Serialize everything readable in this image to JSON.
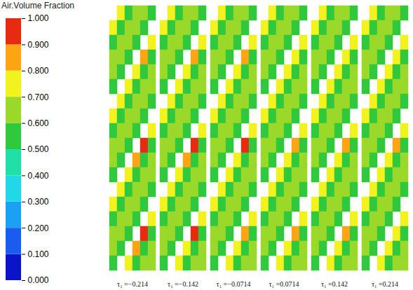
{
  "chart_data": {
    "type": "heatmap",
    "colorbar": {
      "title": "Air.Volume Fraction",
      "range": [
        0,
        1
      ],
      "ticks": [
        {
          "value": 0,
          "label": "0.000"
        },
        {
          "value": 0.1,
          "label": "0.100"
        },
        {
          "value": 0.2,
          "label": "0.200"
        },
        {
          "value": 0.3,
          "label": "0.300"
        },
        {
          "value": 0.4,
          "label": "0.400"
        },
        {
          "value": 0.5,
          "label": "0.500"
        },
        {
          "value": 0.6,
          "label": "0.600"
        },
        {
          "value": 0.7,
          "label": "0.700"
        },
        {
          "value": 0.8,
          "label": "0.800"
        },
        {
          "value": 0.9,
          "label": "0.900"
        },
        {
          "value": 1,
          "label": "1.000"
        }
      ],
      "colors": [
        "#0a14c8",
        "#1a5cf0",
        "#1aa0f5",
        "#20d8e8",
        "#20e0a8",
        "#30c83c",
        "#9ad82a",
        "#f2f21e",
        "#ffa514",
        "#e82a10"
      ]
    },
    "tick_labels": false,
    "panels": [
      {
        "label": "τ₁ =−0.214",
        "cells": [
          [
            null,
            0.75,
            0.55,
            0.62,
            0.66,
            0.52
          ],
          [
            0.75,
            0.55,
            0.62,
            0.66,
            0.52,
            null
          ],
          [
            0.55,
            0.62,
            0.66,
            0.52,
            null,
            0.75
          ],
          [
            0.62,
            0.66,
            0.52,
            null,
            0.85,
            0.55
          ],
          [
            0.66,
            0.52,
            null,
            0.75,
            0.55,
            0.62
          ],
          [
            0.52,
            null,
            0.75,
            0.55,
            0.62,
            0.66
          ],
          [
            null,
            0.75,
            0.55,
            0.62,
            0.66,
            0.52
          ],
          [
            0.75,
            0.55,
            0.62,
            0.66,
            0.52,
            null
          ],
          [
            0.55,
            0.62,
            0.66,
            0.52,
            null,
            0.75
          ],
          [
            0.62,
            0.66,
            0.52,
            null,
            0.95,
            0.55
          ],
          [
            0.66,
            0.52,
            null,
            0.85,
            0.55,
            0.62
          ],
          [
            0.52,
            null,
            0.75,
            0.55,
            0.62,
            0.66
          ],
          [
            null,
            0.75,
            0.55,
            0.62,
            0.66,
            0.52
          ],
          [
            0.75,
            0.55,
            0.62,
            0.66,
            0.52,
            null
          ],
          [
            0.55,
            0.62,
            0.66,
            0.52,
            null,
            0.75
          ],
          [
            0.62,
            0.66,
            0.52,
            null,
            0.95,
            0.55
          ],
          [
            0.66,
            0.52,
            null,
            0.85,
            0.55,
            0.62
          ],
          [
            0.52,
            null,
            0.75,
            0.55,
            0.62,
            0.66
          ]
        ]
      },
      {
        "label": "τ₁ =−0.142",
        "cells": [
          [
            null,
            0.75,
            0.55,
            0.62,
            0.66,
            0.52
          ],
          [
            0.75,
            0.55,
            0.62,
            0.66,
            0.52,
            null
          ],
          [
            0.55,
            0.62,
            0.66,
            0.52,
            null,
            0.75
          ],
          [
            0.62,
            0.66,
            0.52,
            null,
            0.85,
            0.55
          ],
          [
            0.66,
            0.52,
            null,
            0.75,
            0.55,
            0.62
          ],
          [
            0.52,
            null,
            0.75,
            0.55,
            0.62,
            0.66
          ],
          [
            null,
            0.75,
            0.55,
            0.62,
            0.66,
            0.52
          ],
          [
            0.75,
            0.55,
            0.62,
            0.66,
            0.52,
            null
          ],
          [
            0.55,
            0.62,
            0.66,
            0.52,
            null,
            0.75
          ],
          [
            0.62,
            0.66,
            0.52,
            null,
            0.95,
            0.55
          ],
          [
            0.66,
            0.52,
            null,
            0.85,
            0.55,
            0.62
          ],
          [
            0.52,
            null,
            0.75,
            0.55,
            0.62,
            0.66
          ],
          [
            null,
            0.75,
            0.55,
            0.62,
            0.66,
            0.52
          ],
          [
            0.75,
            0.55,
            0.62,
            0.66,
            0.52,
            null
          ],
          [
            0.55,
            0.62,
            0.66,
            0.52,
            null,
            0.75
          ],
          [
            0.62,
            0.66,
            0.52,
            null,
            0.92,
            0.55
          ],
          [
            0.66,
            0.52,
            null,
            0.75,
            0.55,
            0.62
          ],
          [
            0.52,
            null,
            0.75,
            0.55,
            0.62,
            0.66
          ]
        ]
      },
      {
        "label": "τ₁ =−0.0714",
        "cells": [
          [
            null,
            0.75,
            0.55,
            0.62,
            0.66,
            0.52
          ],
          [
            0.75,
            0.55,
            0.62,
            0.66,
            0.52,
            null
          ],
          [
            0.55,
            0.62,
            0.66,
            0.52,
            null,
            0.75
          ],
          [
            0.62,
            0.66,
            0.52,
            null,
            0.82,
            0.55
          ],
          [
            0.66,
            0.52,
            null,
            0.75,
            0.55,
            0.62
          ],
          [
            0.52,
            null,
            0.75,
            0.55,
            0.62,
            0.66
          ],
          [
            null,
            0.75,
            0.55,
            0.62,
            0.66,
            0.52
          ],
          [
            0.75,
            0.55,
            0.62,
            0.66,
            0.52,
            null
          ],
          [
            0.55,
            0.62,
            0.66,
            0.52,
            null,
            0.75
          ],
          [
            0.62,
            0.66,
            0.52,
            null,
            0.92,
            0.55
          ],
          [
            0.66,
            0.52,
            null,
            0.75,
            0.55,
            0.62
          ],
          [
            0.52,
            null,
            0.75,
            0.55,
            0.62,
            0.66
          ],
          [
            null,
            0.75,
            0.55,
            0.62,
            0.66,
            0.52
          ],
          [
            0.75,
            0.55,
            0.62,
            0.66,
            0.52,
            null
          ],
          [
            0.55,
            0.62,
            0.66,
            0.52,
            null,
            0.75
          ],
          [
            0.62,
            0.66,
            0.52,
            null,
            0.85,
            0.55
          ],
          [
            0.66,
            0.52,
            null,
            0.75,
            0.55,
            0.62
          ],
          [
            0.52,
            null,
            0.75,
            0.55,
            0.62,
            0.66
          ]
        ]
      },
      {
        "label": "τ₁ =0.0714",
        "cells": [
          [
            null,
            0.75,
            0.55,
            0.62,
            0.66,
            0.52
          ],
          [
            0.75,
            0.55,
            0.62,
            0.66,
            0.52,
            null
          ],
          [
            0.55,
            0.62,
            0.66,
            0.52,
            null,
            0.75
          ],
          [
            0.62,
            0.66,
            0.52,
            null,
            0.75,
            0.55
          ],
          [
            0.66,
            0.52,
            null,
            0.75,
            0.55,
            0.62
          ],
          [
            0.52,
            null,
            0.75,
            0.55,
            0.62,
            0.66
          ],
          [
            null,
            0.75,
            0.55,
            0.62,
            0.66,
            0.52
          ],
          [
            0.75,
            0.55,
            0.62,
            0.66,
            0.52,
            null
          ],
          [
            0.55,
            0.62,
            0.66,
            0.52,
            null,
            0.75
          ],
          [
            0.62,
            0.66,
            0.52,
            null,
            0.85,
            0.55
          ],
          [
            0.66,
            0.52,
            null,
            0.75,
            0.55,
            0.62
          ],
          [
            0.52,
            null,
            0.75,
            0.55,
            0.62,
            0.66
          ],
          [
            null,
            0.75,
            0.55,
            0.62,
            0.66,
            0.52
          ],
          [
            0.75,
            0.55,
            0.62,
            0.66,
            0.52,
            null
          ],
          [
            0.55,
            0.62,
            0.66,
            0.52,
            null,
            0.75
          ],
          [
            0.62,
            0.66,
            0.52,
            null,
            0.85,
            0.55
          ],
          [
            0.66,
            0.52,
            null,
            0.75,
            0.55,
            0.62
          ],
          [
            0.52,
            null,
            0.75,
            0.55,
            0.62,
            0.66
          ]
        ]
      },
      {
        "label": "τ₁ =0.142",
        "cells": [
          [
            null,
            0.75,
            0.55,
            0.62,
            0.66,
            0.52
          ],
          [
            0.75,
            0.55,
            0.62,
            0.66,
            0.52,
            null
          ],
          [
            0.55,
            0.62,
            0.66,
            0.52,
            null,
            0.75
          ],
          [
            0.62,
            0.66,
            0.52,
            null,
            0.75,
            0.55
          ],
          [
            0.66,
            0.52,
            null,
            0.75,
            0.55,
            0.62
          ],
          [
            0.52,
            null,
            0.75,
            0.55,
            0.62,
            0.66
          ],
          [
            null,
            0.75,
            0.55,
            0.62,
            0.66,
            0.52
          ],
          [
            0.75,
            0.55,
            0.62,
            0.66,
            0.52,
            null
          ],
          [
            0.55,
            0.62,
            0.66,
            0.52,
            null,
            0.75
          ],
          [
            0.62,
            0.66,
            0.52,
            null,
            0.85,
            0.55
          ],
          [
            0.66,
            0.52,
            null,
            0.75,
            0.55,
            0.62
          ],
          [
            0.52,
            null,
            0.75,
            0.55,
            0.62,
            0.66
          ],
          [
            null,
            0.75,
            0.55,
            0.62,
            0.66,
            0.52
          ],
          [
            0.75,
            0.55,
            0.62,
            0.66,
            0.52,
            null
          ],
          [
            0.55,
            0.62,
            0.66,
            0.52,
            null,
            0.75
          ],
          [
            0.62,
            0.66,
            0.52,
            null,
            0.82,
            0.55
          ],
          [
            0.66,
            0.52,
            null,
            0.75,
            0.55,
            0.62
          ],
          [
            0.52,
            null,
            0.75,
            0.55,
            0.62,
            0.66
          ]
        ]
      },
      {
        "label": "τ₁ =0.214",
        "cells": [
          [
            null,
            0.75,
            0.55,
            0.62,
            0.66,
            0.52
          ],
          [
            0.75,
            0.55,
            0.62,
            0.66,
            0.52,
            null
          ],
          [
            0.55,
            0.62,
            0.66,
            0.52,
            null,
            0.75
          ],
          [
            0.62,
            0.66,
            0.52,
            null,
            0.75,
            0.55
          ],
          [
            0.66,
            0.52,
            null,
            0.75,
            0.55,
            0.62
          ],
          [
            0.52,
            null,
            0.75,
            0.55,
            0.62,
            0.66
          ],
          [
            null,
            0.75,
            0.55,
            0.62,
            0.66,
            0.52
          ],
          [
            0.75,
            0.55,
            0.62,
            0.66,
            0.52,
            null
          ],
          [
            0.55,
            0.62,
            0.66,
            0.52,
            null,
            0.75
          ],
          [
            0.62,
            0.66,
            0.52,
            null,
            0.82,
            0.55
          ],
          [
            0.66,
            0.52,
            null,
            0.75,
            0.55,
            0.62
          ],
          [
            0.52,
            null,
            0.75,
            0.55,
            0.62,
            0.66
          ],
          [
            null,
            0.75,
            0.55,
            0.62,
            0.66,
            0.52
          ],
          [
            0.75,
            0.55,
            0.62,
            0.66,
            0.52,
            null
          ],
          [
            0.55,
            0.62,
            0.66,
            0.52,
            null,
            0.75
          ],
          [
            0.62,
            0.66,
            0.52,
            null,
            0.75,
            0.55
          ],
          [
            0.66,
            0.52,
            null,
            0.75,
            0.55,
            0.62
          ],
          [
            0.52,
            null,
            0.75,
            0.55,
            0.62,
            0.66
          ]
        ]
      }
    ]
  }
}
